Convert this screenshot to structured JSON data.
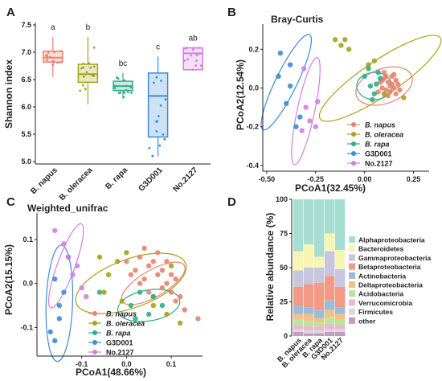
{
  "colors": {
    "B. napus": "#E8836F",
    "B. oleracea": "#A5A316",
    "B. rapa": "#2EAE86",
    "G3D001": "#3C8CD8",
    "No.2127": "#D27FE0",
    "axis": "#222222"
  },
  "groups": [
    "B. napus",
    "B. oleracea",
    "B. rapa",
    "G3D001",
    "No.2127"
  ],
  "chart_data": [
    {
      "panel": "A",
      "type": "box",
      "title": "",
      "xlabel": "",
      "ylabel": "Shannon index",
      "ylim": [
        5.0,
        7.5
      ],
      "yticks": [
        "5.0",
        "5.5",
        "6.0",
        "6.5",
        "7.0",
        "7.5"
      ],
      "categories": [
        "B. napus",
        "B. oleracea",
        "B. rapa",
        "G3D001",
        "No.2127"
      ],
      "boxes": [
        {
          "group": "B. napus",
          "q1": 6.82,
          "median": 6.9,
          "q3": 7.02,
          "whisker_low": 6.55,
          "whisker_high": 7.28,
          "letter": "a"
        },
        {
          "group": "B. oleracea",
          "q1": 6.45,
          "median": 6.6,
          "q3": 6.78,
          "whisker_low": 6.05,
          "whisker_high": 7.28,
          "letter": "b"
        },
        {
          "group": "B. rapa",
          "q1": 6.3,
          "median": 6.38,
          "q3": 6.47,
          "whisker_low": 6.15,
          "whisker_high": 6.62,
          "letter": "bc"
        },
        {
          "group": "G3D001",
          "q1": 5.45,
          "median": 6.2,
          "q3": 6.62,
          "whisker_low": 5.1,
          "whisker_high": 6.92,
          "letter": "c"
        },
        {
          "group": "No.2127",
          "q1": 6.68,
          "median": 6.98,
          "q3": 7.08,
          "whisker_low": 6.68,
          "whisker_high": 7.08,
          "letter": "ab"
        }
      ]
    },
    {
      "panel": "B",
      "type": "scatter",
      "title": "Bray-Curtis",
      "xlabel": "PCoA1(32.45%)",
      "ylabel": "PCoA2(12.54%)",
      "xlim": [
        -0.52,
        0.33
      ],
      "ylim": [
        -0.43,
        0.33
      ],
      "xticks": [
        -0.5,
        -0.25,
        0.0,
        0.25
      ],
      "xtick_labels": [
        "-0.50",
        "-0.25",
        "0.00",
        "0.25"
      ],
      "yticks": [
        -0.4,
        -0.2,
        0.0,
        0.2
      ],
      "ytick_labels": [
        "-0.4",
        "-0.2",
        "0.0",
        "0.2"
      ],
      "legend": [
        "B. napus",
        "B. oleracea",
        "B. rapa",
        "G3D001",
        "No.2127"
      ],
      "legend_position": "bottom-right",
      "ellipses": [
        {
          "group": "B. oleracea",
          "cx": 0.08,
          "cy": 0.05,
          "rx": 0.37,
          "ry": 0.09,
          "angle": -34
        },
        {
          "group": "B. napus",
          "cx": 0.1,
          "cy": 0.01,
          "rx": 0.15,
          "ry": 0.09,
          "angle": -20
        },
        {
          "group": "B. rapa",
          "cx": 0.05,
          "cy": 0.01,
          "rx": 0.09,
          "ry": 0.07,
          "angle": 0
        },
        {
          "group": "G3D001",
          "cx": -0.4,
          "cy": 0.03,
          "rx": 0.27,
          "ry": 0.055,
          "angle": -64
        },
        {
          "group": "No.2127",
          "cx": -0.3,
          "cy": -0.12,
          "rx": 0.28,
          "ry": 0.045,
          "angle": -78
        }
      ],
      "points": {
        "B. napus": [
          [
            0.1,
            0.05
          ],
          [
            0.12,
            0.03
          ],
          [
            0.14,
            0.02
          ],
          [
            0.09,
            0.0
          ],
          [
            0.16,
            0.04
          ],
          [
            0.13,
            -0.02
          ],
          [
            0.11,
            0.06
          ],
          [
            0.15,
            0.0
          ],
          [
            0.08,
            0.03
          ],
          [
            0.17,
            0.02
          ],
          [
            0.12,
            -0.04
          ],
          [
            0.1,
            0.08
          ],
          [
            0.14,
            0.06
          ],
          [
            0.07,
            -0.02
          ],
          [
            0.18,
            -0.01
          ],
          [
            0.13,
            0.01
          ],
          [
            0.11,
            -0.01
          ],
          [
            0.15,
            0.07
          ],
          [
            0.09,
            0.04
          ],
          [
            0.16,
            -0.03
          ]
        ],
        "B. oleracea": [
          [
            -0.15,
            0.25
          ],
          [
            -0.12,
            0.22
          ],
          [
            -0.1,
            0.25
          ],
          [
            -0.08,
            0.2
          ],
          [
            0.02,
            0.12
          ],
          [
            0.05,
            0.14
          ],
          [
            0.1,
            -0.03
          ],
          [
            0.2,
            -0.05
          ]
        ],
        "B. rapa": [
          [
            0.0,
            0.06
          ],
          [
            0.03,
            0.01
          ],
          [
            0.05,
            -0.03
          ],
          [
            0.07,
            0.08
          ],
          [
            0.02,
            0.1
          ],
          [
            0.06,
            0.02
          ],
          [
            0.04,
            -0.06
          ],
          [
            0.08,
            0.05
          ]
        ],
        "G3D001": [
          [
            -0.43,
            0.18
          ],
          [
            -0.44,
            0.06
          ],
          [
            -0.38,
            0.01
          ],
          [
            -0.4,
            -0.08
          ],
          [
            -0.35,
            -0.2
          ],
          [
            -0.33,
            -0.15
          ],
          [
            -0.38,
            0.12
          ]
        ],
        "No.2127": [
          [
            -0.31,
            0.1
          ],
          [
            -0.3,
            -0.1
          ],
          [
            -0.28,
            -0.17
          ],
          [
            -0.25,
            -0.2
          ],
          [
            -0.32,
            -0.22
          ],
          [
            -0.24,
            -0.07
          ]
        ]
      }
    },
    {
      "panel": "C",
      "type": "scatter",
      "title": "Weighted_unifrac",
      "xlabel": "PCoA1(48.66%)",
      "ylabel": "PCoA2(15.15%)",
      "xlim": [
        -0.2,
        0.17
      ],
      "ylim": [
        -0.165,
        0.16
      ],
      "xticks": [
        -0.1,
        0.0,
        0.1
      ],
      "xtick_labels": [
        "-0.1",
        "0.0",
        "0.1"
      ],
      "yticks": [
        -0.1,
        0.0,
        0.1
      ],
      "ytick_labels": [
        "-0.1",
        "0.0",
        "0.1"
      ],
      "legend": [
        "B. napus",
        "B. oleracea",
        "B. rapa",
        "G3D001",
        "No.2127"
      ],
      "legend_position": "bottom-center",
      "ellipses": [
        {
          "group": "B. oleracea",
          "cx": 0.01,
          "cy": 0.0,
          "rx": 0.13,
          "ry": 0.055,
          "angle": -20
        },
        {
          "group": "B. napus",
          "cx": 0.06,
          "cy": 0.0,
          "rx": 0.08,
          "ry": 0.03,
          "angle": -30
        },
        {
          "group": "B. rapa",
          "cx": 0.05,
          "cy": -0.05,
          "rx": 0.07,
          "ry": 0.035,
          "angle": -10
        },
        {
          "group": "G3D001",
          "cx": -0.15,
          "cy": -0.045,
          "rx": 0.13,
          "ry": 0.03,
          "angle": -88
        },
        {
          "group": "No.2127",
          "cx": -0.135,
          "cy": 0.04,
          "rx": 0.1,
          "ry": 0.02,
          "angle": -70
        }
      ],
      "points": {
        "B. napus": [
          [
            0.03,
            0.06
          ],
          [
            0.05,
            0.04
          ],
          [
            0.07,
            0.02
          ],
          [
            0.09,
            0.0
          ],
          [
            0.02,
            0.03
          ],
          [
            0.06,
            0.05
          ],
          [
            0.08,
            -0.01
          ],
          [
            0.1,
            -0.02
          ],
          [
            0.04,
            0.01
          ],
          [
            0.11,
            -0.04
          ],
          [
            0.05,
            -0.02
          ],
          [
            0.07,
            0.07
          ],
          [
            0.12,
            -0.03
          ],
          [
            0.03,
            0.0
          ],
          [
            0.08,
            0.03
          ],
          [
            0.06,
            -0.03
          ],
          [
            0.1,
            0.02
          ],
          [
            0.09,
            0.05
          ],
          [
            0.13,
            -0.06
          ],
          [
            0.04,
            0.08
          ],
          [
            0.01,
            0.02
          ],
          [
            0.0,
            0.05
          ],
          [
            0.11,
            0.01
          ],
          [
            0.16,
            -0.08
          ]
        ],
        "B. oleracea": [
          [
            -0.06,
            0.06
          ],
          [
            -0.04,
            0.02
          ],
          [
            -0.02,
            0.05
          ],
          [
            0.0,
            0.07
          ],
          [
            -0.05,
            -0.02
          ],
          [
            -0.01,
            -0.04
          ],
          [
            0.06,
            -0.05
          ],
          [
            0.09,
            -0.07
          ],
          [
            0.1,
            0.04
          ],
          [
            0.12,
            -0.09
          ]
        ],
        "B. rapa": [
          [
            -0.06,
            -0.02
          ],
          [
            0.01,
            -0.05
          ],
          [
            0.03,
            -0.02
          ],
          [
            0.05,
            -0.07
          ],
          [
            0.08,
            -0.05
          ],
          [
            0.02,
            -0.08
          ],
          [
            0.06,
            -0.03
          ]
        ],
        "G3D001": [
          [
            -0.16,
            0.01
          ],
          [
            -0.14,
            -0.02
          ],
          [
            -0.15,
            -0.08
          ],
          [
            -0.17,
            -0.11
          ],
          [
            -0.16,
            -0.13
          ],
          [
            -0.13,
            0.06
          ],
          [
            -0.15,
            -0.05
          ]
        ],
        "No.2127": [
          [
            -0.16,
            0.12
          ],
          [
            -0.14,
            0.09
          ],
          [
            -0.13,
            0.06
          ],
          [
            -0.11,
            0.04
          ],
          [
            -0.1,
            -0.01
          ],
          [
            -0.12,
            0.02
          ],
          [
            -0.09,
            -0.03
          ]
        ]
      }
    },
    {
      "panel": "D",
      "type": "stacked_bar",
      "title": "",
      "xlabel": "",
      "ylabel": "Relative abundance (%)",
      "ylim": [
        0,
        100
      ],
      "yticks": [
        0,
        25,
        50,
        75,
        100
      ],
      "categories": [
        "B. napus",
        "B. oleracea",
        "B. rapa",
        "G3D001",
        "No.2127"
      ],
      "legend_position": "right",
      "series": [
        {
          "name": "Alphaproteobacteria",
          "color": "#A8DDD1",
          "values": [
            38,
            33,
            42,
            25,
            37
          ]
        },
        {
          "name": "Bacteroidetes",
          "color": "#F6F5B4",
          "values": [
            14,
            17,
            8,
            13,
            14
          ]
        },
        {
          "name": "Gammaproteobacteria",
          "color": "#C8C5DE",
          "values": [
            12,
            12,
            11,
            18,
            13
          ]
        },
        {
          "name": "Betaproteobacteria",
          "color": "#F39A86",
          "values": [
            14,
            17,
            20,
            18,
            15
          ]
        },
        {
          "name": "Actinobacteria",
          "color": "#9CBBD8",
          "values": [
            6,
            5,
            6,
            7,
            5
          ]
        },
        {
          "name": "Deltaproteobacteria",
          "color": "#F6BF86",
          "values": [
            4,
            5,
            3,
            5,
            4
          ]
        },
        {
          "name": "Acidobacteria",
          "color": "#BDE39C",
          "values": [
            4,
            4,
            3,
            5,
            4
          ]
        },
        {
          "name": "Verrucomicrobia",
          "color": "#EAB8D4",
          "values": [
            3,
            3,
            3,
            4,
            3
          ]
        },
        {
          "name": "Firmicutes",
          "color": "#DADADA",
          "values": [
            2,
            2,
            2,
            2,
            2
          ]
        },
        {
          "name": "other",
          "color": "#C79AC4",
          "values": [
            3,
            2,
            2,
            3,
            3
          ]
        }
      ]
    }
  ],
  "panel_labels": [
    "A",
    "B",
    "C",
    "D"
  ]
}
